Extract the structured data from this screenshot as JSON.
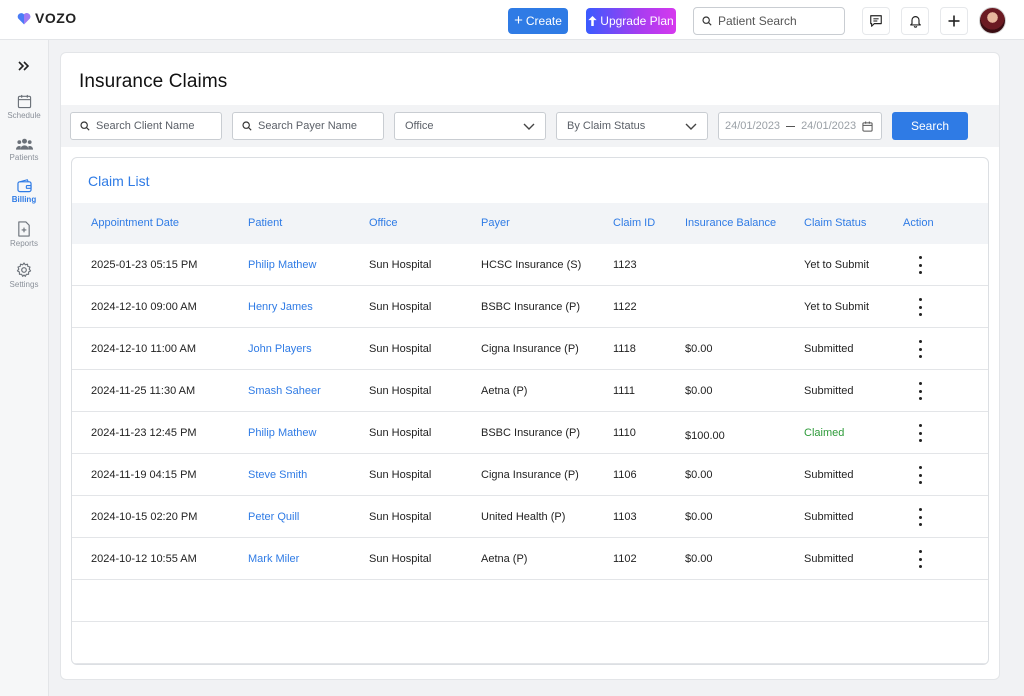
{
  "app": {
    "logo_text": "VOZO"
  },
  "topbar": {
    "create_label": "Create",
    "upgrade_label": "Upgrade Plan",
    "search_placeholder": "Patient Search"
  },
  "sidebar": {
    "items": [
      {
        "label": "Schedule",
        "icon": "calendar-icon"
      },
      {
        "label": "Patients",
        "icon": "patients-icon"
      },
      {
        "label": "Billing",
        "icon": "wallet-icon",
        "active": true
      },
      {
        "label": "Reports",
        "icon": "report-icon"
      },
      {
        "label": "Settings",
        "icon": "gear-icon"
      }
    ]
  },
  "page": {
    "title": "Insurance Claims"
  },
  "filters": {
    "client_placeholder": "Search Client Name",
    "payer_placeholder": "Search Payer Name",
    "office_value": "Office",
    "status_value": "By Claim Status",
    "date_from": "24/01/2023",
    "date_to": "24/01/2023",
    "search_label": "Search"
  },
  "claim_list": {
    "title": "Claim List",
    "columns": [
      "Appointment Date",
      "Patient",
      "Office",
      "Payer",
      "Claim ID",
      "Insurance Balance",
      "Claim Status",
      "Action"
    ],
    "rows": [
      {
        "date": "2025-01-23 05:15 PM",
        "patient": "Philip Mathew",
        "office": "Sun Hospital",
        "payer": "HCSC Insurance (S)",
        "claim_id": "1123",
        "balance": "",
        "status": "Yet to Submit"
      },
      {
        "date": "2024-12-10 09:00 AM",
        "patient": "Henry James",
        "office": "Sun Hospital",
        "payer": "BSBC Insurance (P)",
        "claim_id": "1122",
        "balance": "",
        "status": "Yet to Submit"
      },
      {
        "date": "2024-12-10 11:00 AM",
        "patient": "John Players",
        "office": "Sun Hospital",
        "payer": "Cigna Insurance (P)",
        "claim_id": "1118",
        "balance": "$0.00",
        "status": "Submitted"
      },
      {
        "date": "2024-11-25 11:30 AM",
        "patient": "Smash Saheer",
        "office": "Sun Hospital",
        "payer": "Aetna (P)",
        "claim_id": "1111",
        "balance": "$0.00",
        "status": "Submitted"
      },
      {
        "date": "2024-11-23 12:45 PM",
        "patient": "Philip Mathew",
        "office": "Sun Hospital",
        "payer": "BSBC Insurance (P)",
        "claim_id": "1110",
        "balance": "$100.00",
        "status": "Claimed"
      },
      {
        "date": "2024-11-19 04:15 PM",
        "patient": "Steve Smith",
        "office": "Sun Hospital",
        "payer": "Cigna Insurance (P)",
        "claim_id": "1106",
        "balance": "$0.00",
        "status": "Submitted"
      },
      {
        "date": "2024-10-15 02:20 PM",
        "patient": "Peter Quill",
        "office": "Sun Hospital",
        "payer": "United Health (P)",
        "claim_id": "1103",
        "balance": "$0.00",
        "status": "Submitted"
      },
      {
        "date": "2024-10-12 10:55 AM",
        "patient": "Mark Miler",
        "office": "Sun Hospital",
        "payer": "Aetna (P)",
        "claim_id": "1102",
        "balance": "$0.00",
        "status": "Submitted"
      }
    ]
  },
  "colors": {
    "accent": "#2f7be5",
    "claimed_status": "#2e9b3a",
    "upgrade_gradient_start": "#3a5bff",
    "upgrade_gradient_end": "#d639ee"
  }
}
